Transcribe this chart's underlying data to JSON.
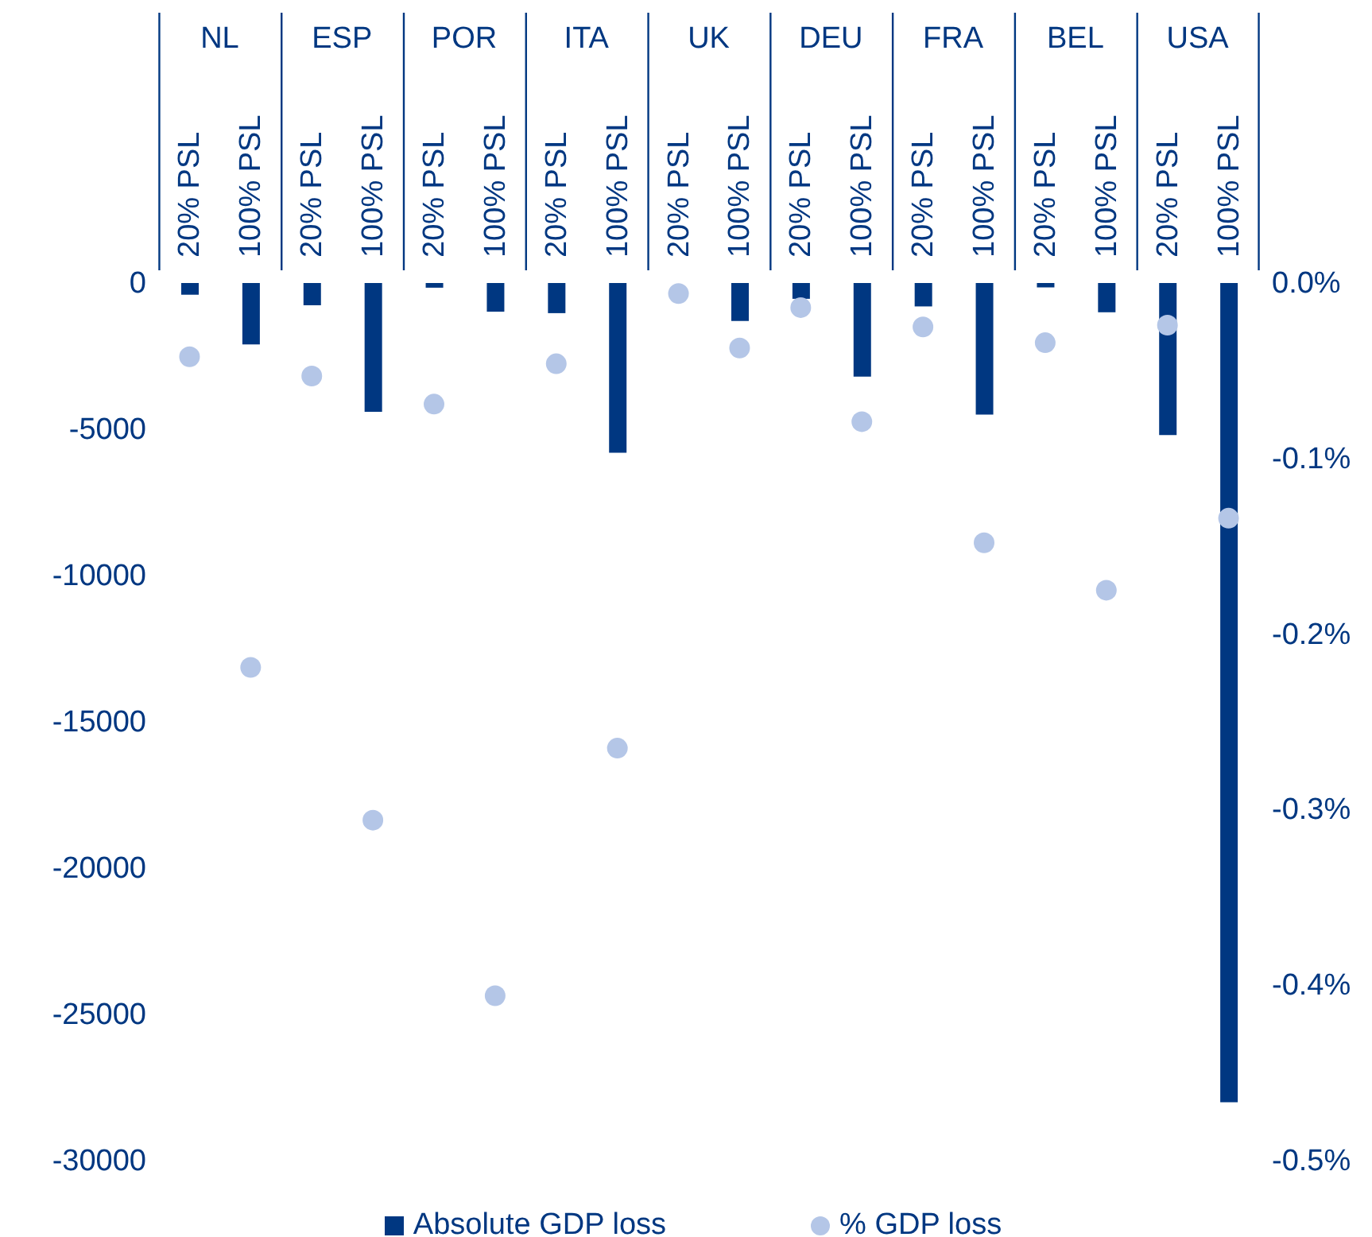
{
  "chart_data": {
    "type": "bar",
    "categories": [
      "20% PSL",
      "100% PSL",
      "20% PSL",
      "100% PSL",
      "20% PSL",
      "100% PSL",
      "20% PSL",
      "100% PSL",
      "20% PSL",
      "100% PSL",
      "20% PSL",
      "100% PSL",
      "20% PSL",
      "100% PSL",
      "20% PSL",
      "100% PSL",
      "20% PSL",
      "100% PSL"
    ],
    "annotations": [
      "NL",
      "ESP",
      "POR",
      "ITA",
      "UK",
      "DEU",
      "FRA",
      "BEL",
      "USA"
    ],
    "series": [
      {
        "name": "Absolute GDP loss",
        "color": "#003781",
        "values": [
          -400,
          -2100,
          -760,
          -4400,
          -160,
          -980,
          -1030,
          -5800,
          null,
          -1300,
          -540,
          -3200,
          -800,
          -4500,
          -150,
          -1000,
          -5200,
          -28000
        ]
      },
      {
        "name": "% GDP loss",
        "type": "scatter",
        "axis": "y2",
        "marker": "circle",
        "color": "#b4c6e7",
        "values": [
          -0.042,
          -0.219,
          -0.053,
          -0.306,
          -0.069,
          -0.406,
          -0.046,
          -0.265,
          -0.006,
          -0.037,
          -0.014,
          -0.079,
          -0.025,
          -0.148,
          -0.034,
          -0.175,
          -0.024,
          -0.134
        ]
      }
    ],
    "ylim": [
      -30000,
      0
    ],
    "yticks": [
      0,
      -5000,
      -10000,
      -15000,
      -20000,
      -25000,
      -30000
    ],
    "y2lim": [
      -0.5,
      0
    ],
    "y2ticks": [
      {
        "value": 0,
        "label": "0.0%"
      },
      {
        "value": -0.1,
        "label": "-0.1%"
      },
      {
        "value": -0.2,
        "label": "-0.2%"
      },
      {
        "value": -0.3,
        "label": "-0.3%"
      },
      {
        "value": -0.4,
        "label": "-0.4%"
      },
      {
        "value": -0.5,
        "label": "-0.5%"
      }
    ],
    "grid": false,
    "legend": "bottom"
  }
}
